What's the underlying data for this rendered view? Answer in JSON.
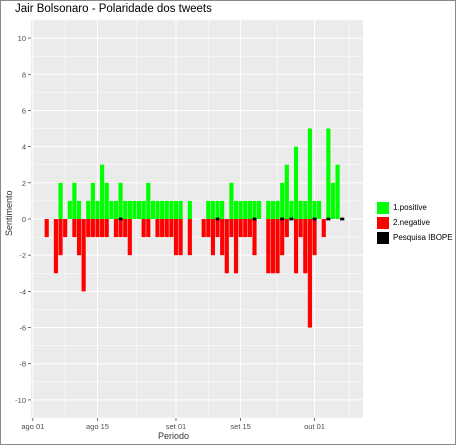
{
  "chart_data": {
    "type": "bar",
    "title": "Jair Bolsonaro - Polaridade dos tweets",
    "xlabel": "Periodo",
    "ylabel": "Sentimento",
    "ylim": [
      -11,
      11
    ],
    "yticks": [
      10,
      8,
      6,
      4,
      2,
      0,
      -2,
      -4,
      -6,
      -8,
      -10
    ],
    "xticks": [
      {
        "label": "ago 01",
        "day": 0
      },
      {
        "label": "ago 15",
        "day": 14
      },
      {
        "label": "set 01",
        "day": 31
      },
      {
        "label": "set 15",
        "day": 45
      },
      {
        "label": "out 01",
        "day": 61
      }
    ],
    "x_domain_days": [
      -0.4,
      71.5
    ],
    "date_origin": "2018-08-01",
    "grid": true,
    "legend_position": "right",
    "colors": {
      "positive": "#00ff00",
      "negative": "#ff0000",
      "ibope": "#000000",
      "panel": "#ebebeb",
      "grid": "#ffffff"
    },
    "legend": [
      {
        "label": "1.positive",
        "color": "#00ff00"
      },
      {
        "label": "2.negative",
        "color": "#ff0000"
      },
      {
        "label": "Pesquisa IBOPE",
        "color": "#000000"
      }
    ],
    "series": [
      {
        "name": "1.positive",
        "x": [
          6,
          8,
          9,
          10,
          12,
          13,
          14,
          15,
          16,
          17,
          18,
          19,
          20,
          21,
          22,
          23,
          24,
          25,
          26,
          27,
          28,
          29,
          30,
          31,
          32,
          34,
          38,
          39,
          40,
          41,
          43,
          44,
          45,
          46,
          47,
          48,
          49,
          51,
          52,
          53,
          54,
          55,
          56,
          57,
          58,
          59,
          60,
          61,
          62,
          64,
          65,
          66
        ],
        "values": [
          2,
          1,
          2,
          1,
          1,
          2,
          1,
          3,
          2,
          1,
          1,
          2,
          1,
          1,
          1,
          1,
          1,
          2,
          1,
          1,
          1,
          1,
          1,
          1,
          1,
          1,
          1,
          1,
          1,
          1,
          2,
          1,
          1,
          1,
          1,
          1,
          1,
          1,
          1,
          1,
          2,
          3,
          1,
          4,
          1,
          1,
          5,
          1,
          1,
          5,
          2,
          3
        ]
      },
      {
        "name": "2.negative",
        "x": [
          3,
          5,
          6,
          7,
          9,
          10,
          11,
          12,
          13,
          14,
          15,
          16,
          18,
          19,
          20,
          21,
          24,
          25,
          27,
          28,
          29,
          30,
          31,
          32,
          34,
          37,
          38,
          39,
          40,
          41,
          42,
          43,
          44,
          45,
          46,
          47,
          48,
          51,
          52,
          53,
          54,
          55,
          57,
          58,
          59,
          60,
          61,
          63
        ],
        "values": [
          -1,
          -3,
          -2,
          -1,
          -1,
          -2,
          -4,
          -1,
          -1,
          -1,
          -1,
          -1,
          -1,
          -1,
          -1,
          -2,
          -1,
          -1,
          -1,
          -1,
          -1,
          -1,
          -2,
          -2,
          -2,
          -1,
          -1,
          -2,
          -1,
          -2,
          -3,
          -1,
          -3,
          -1,
          -1,
          -1,
          -2,
          -3,
          -3,
          -3,
          -2,
          -1,
          -3,
          -1,
          -3,
          -6,
          -2,
          -1
        ]
      },
      {
        "name": "Pesquisa IBOPE",
        "x": [
          19,
          40,
          48,
          54,
          56,
          61,
          64,
          67
        ],
        "values": [
          0.15,
          0.15,
          0.15,
          0.15,
          0.15,
          0.15,
          0.15,
          0.15
        ]
      }
    ]
  }
}
